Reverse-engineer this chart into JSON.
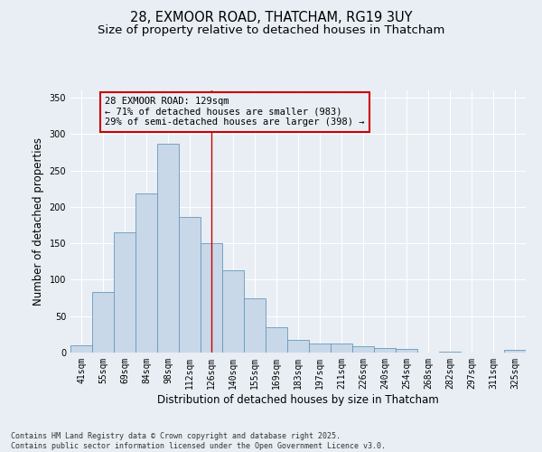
{
  "title_line1": "28, EXMOOR ROAD, THATCHAM, RG19 3UY",
  "title_line2": "Size of property relative to detached houses in Thatcham",
  "xlabel": "Distribution of detached houses by size in Thatcham",
  "ylabel": "Number of detached properties",
  "categories": [
    "41sqm",
    "55sqm",
    "69sqm",
    "84sqm",
    "98sqm",
    "112sqm",
    "126sqm",
    "140sqm",
    "155sqm",
    "169sqm",
    "183sqm",
    "197sqm",
    "211sqm",
    "226sqm",
    "240sqm",
    "254sqm",
    "268sqm",
    "282sqm",
    "297sqm",
    "311sqm",
    "325sqm"
  ],
  "values": [
    10,
    83,
    165,
    218,
    287,
    186,
    150,
    113,
    75,
    35,
    18,
    12,
    12,
    9,
    6,
    5,
    0,
    1,
    0,
    0,
    4
  ],
  "bar_color": "#c8d8e8",
  "bar_edge_color": "#6699bb",
  "vline_x": 6,
  "vline_color": "#cc0000",
  "annotation_box_text": "28 EXMOOR ROAD: 129sqm\n← 71% of detached houses are smaller (983)\n29% of semi-detached houses are larger (398) →",
  "annotation_box_color": "#cc0000",
  "bg_color": "#e8eef4",
  "plot_bg_color": "#e8eef4",
  "ylim": [
    0,
    360
  ],
  "yticks": [
    0,
    50,
    100,
    150,
    200,
    250,
    300,
    350
  ],
  "footer_text": "Contains HM Land Registry data © Crown copyright and database right 2025.\nContains public sector information licensed under the Open Government Licence v3.0.",
  "title_fontsize": 10.5,
  "subtitle_fontsize": 9.5,
  "axis_label_fontsize": 8.5,
  "tick_fontsize": 7,
  "annotation_fontsize": 7.5,
  "footer_fontsize": 6
}
